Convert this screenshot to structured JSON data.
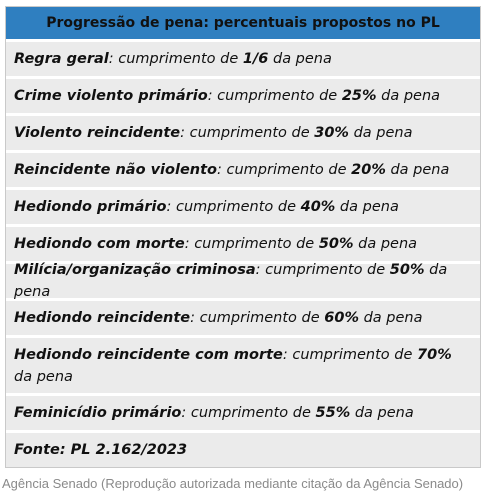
{
  "title": "Progressão de pena: percentuais propostos no PL",
  "rows": [
    {
      "label": "Regra geral",
      "pre": ": cumprimento de ",
      "value": "1/6",
      "post": " da pena"
    },
    {
      "label": "Crime violento primário",
      "pre": ": cumprimento de ",
      "value": "25%",
      "post": " da pena"
    },
    {
      "label": "Violento reincidente",
      "pre": ": cumprimento de ",
      "value": "30%",
      "post": " da pena"
    },
    {
      "label": "Reincidente não violento",
      "pre": ": cumprimento de ",
      "value": "20%",
      "post": " da pena"
    },
    {
      "label": "Hediondo primário",
      "pre": ": cumprimento de ",
      "value": "40%",
      "post": " da pena"
    },
    {
      "label": "Hediondo com morte",
      "pre": ": cumprimento de ",
      "value": "50%",
      "post": " da pena"
    },
    {
      "label": "Milícia/organização criminosa",
      "pre": ": cumprimento de ",
      "value": "50%",
      "post": " da pena"
    },
    {
      "label": "Hediondo reincidente",
      "pre": ": cumprimento de ",
      "value": "60%",
      "post": " da pena"
    },
    {
      "label": "Hediondo reincidente com morte",
      "pre": ": cumprimento de ",
      "value": "70%",
      "post": " da pena"
    },
    {
      "label": "Feminicídio primário",
      "pre": ": cumprimento de ",
      "value": "55%",
      "post": " da pena"
    }
  ],
  "source": "Fonte: PL 2.162/2023",
  "credit": "Agência Senado (Reprodução autorizada mediante citação da Agência Senado)"
}
